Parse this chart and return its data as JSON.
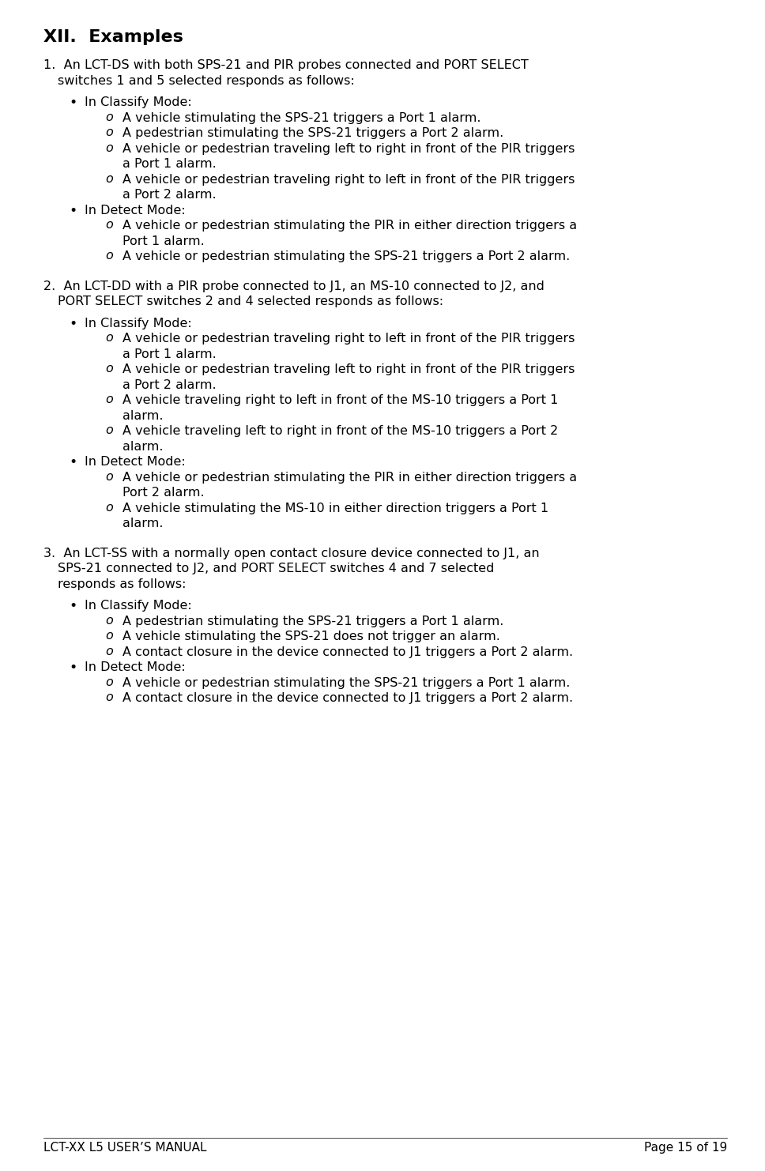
{
  "title": "XII.  Examples",
  "bg_color": "#ffffff",
  "text_color": "#000000",
  "title_fontsize": 16,
  "body_fontsize": 11.5,
  "footer_left": "LCT-XX L5 USER’S MANUAL",
  "footer_right": "Page 15 of 19",
  "sections": [
    {
      "number": "1.",
      "intro": "  An LCT-DS with both SPS-21 and PIR probes connected and PORT SELECT\n    switches 1 and 5 selected responds as follows:",
      "bullets": [
        {
          "label": "In Classify Mode:",
          "subitems": [
            "A vehicle stimulating the SPS-21 triggers a Port 1 alarm.",
            "A pedestrian stimulating the SPS-21 triggers a Port 2 alarm.",
            "A vehicle or pedestrian traveling left to right in front of the PIR triggers\n    a Port 1 alarm.",
            "A vehicle or pedestrian traveling right to left in front of the PIR triggers\n    a Port 2 alarm."
          ]
        },
        {
          "label": "In Detect Mode:",
          "subitems": [
            "A vehicle or pedestrian stimulating the PIR in either direction triggers a\n    Port 1 alarm.",
            "A vehicle or pedestrian stimulating the SPS-21 triggers a Port 2 alarm."
          ]
        }
      ]
    },
    {
      "number": "2.",
      "intro": "  An LCT-DD with a PIR probe connected to J1, an MS-10 connected to J2, and\n    PORT SELECT switches 2 and 4 selected responds as follows:",
      "bullets": [
        {
          "label": "In Classify Mode:",
          "subitems": [
            "A vehicle or pedestrian traveling right to left in front of the PIR triggers\n    a Port 1 alarm.",
            "A vehicle or pedestrian traveling left to right in front of the PIR triggers\n    a Port 2 alarm.",
            "A vehicle traveling right to left in front of the MS-10 triggers a Port 1\n    alarm.",
            "A vehicle traveling left to right in front of the MS-10 triggers a Port 2\n    alarm."
          ]
        },
        {
          "label": "In Detect Mode:",
          "subitems": [
            "A vehicle or pedestrian stimulating the PIR in either direction triggers a\n    Port 2 alarm.",
            "A vehicle stimulating the MS-10 in either direction triggers a Port 1\n    alarm."
          ]
        }
      ]
    },
    {
      "number": "3.",
      "intro": "  An LCT-SS with a normally open contact closure device connected to J1, an\n    SPS-21 connected to J2, and PORT SELECT switches 4 and 7 selected\n    responds as follows:",
      "bullets": [
        {
          "label": "In Classify Mode:",
          "subitems": [
            "A pedestrian stimulating the SPS-21 triggers a Port 1 alarm.",
            "A vehicle stimulating the SPS-21 does not trigger an alarm.",
            "A contact closure in the device connected to J1 triggers a Port 2 alarm."
          ]
        },
        {
          "label": "In Detect Mode:",
          "subitems": [
            "A vehicle or pedestrian stimulating the SPS-21 triggers a Port 1 alarm.",
            "A contact closure in the device connected to J1 triggers a Port 2 alarm."
          ]
        }
      ]
    }
  ]
}
